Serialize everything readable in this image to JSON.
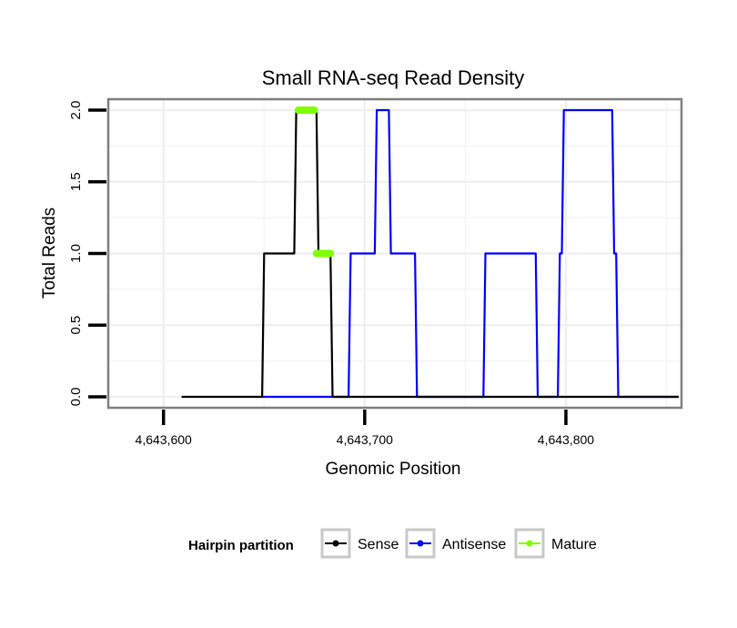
{
  "chart_data": {
    "type": "line",
    "title": "Small RNA-seq Read Density",
    "xlabel": "Genomic Position",
    "ylabel": "Total Reads",
    "xlim": [
      4643573,
      4643857
    ],
    "ylim": [
      -0.07,
      2.07
    ],
    "x_ticks": [
      4643600,
      4643700,
      4643800
    ],
    "x_tick_labels": [
      "4,643,600",
      "4,643,700",
      "4,643,800"
    ],
    "y_ticks": [
      0,
      0.5,
      1,
      1.5,
      2
    ],
    "y_tick_labels": [
      "0.0",
      "0.5",
      "1.0",
      "1.5",
      "2.0"
    ],
    "legend": {
      "title": "Hairpin partition",
      "position": "bottom",
      "entries": [
        {
          "name": "Sense",
          "color": "#000000"
        },
        {
          "name": "Antisense",
          "color": "#0000ff"
        },
        {
          "name": "Mature",
          "color": "#7fff00"
        }
      ]
    },
    "series": [
      {
        "name": "Sense",
        "color": "#000000",
        "x": [
          4643609,
          4643649,
          4643650,
          4643665,
          4643666,
          4643667,
          4643676,
          4643677,
          4643683,
          4643684,
          4643856
        ],
        "y": [
          0,
          0,
          1,
          1,
          2,
          2,
          2,
          1,
          1,
          0,
          0
        ]
      },
      {
        "name": "Antisense",
        "color": "#0000ff",
        "x": [
          4643649,
          4643692,
          4643693,
          4643705,
          4643706,
          4643712,
          4643713,
          4643725,
          4643726,
          4643759,
          4643760,
          4643785,
          4643786,
          4643796,
          4643797,
          4643798,
          4643799,
          4643823,
          4643824,
          4643825,
          4643826,
          4643856
        ],
        "y": [
          0,
          0,
          1,
          1,
          2,
          2,
          1,
          1,
          0,
          0,
          1,
          1,
          0,
          0,
          1,
          1,
          2,
          2,
          1,
          1,
          0,
          0
        ]
      }
    ],
    "mature_segments": [
      {
        "x_start": 4643667,
        "x_end": 4643675,
        "y": 2
      },
      {
        "x_start": 4643676,
        "x_end": 4643683,
        "y": 1
      }
    ]
  }
}
